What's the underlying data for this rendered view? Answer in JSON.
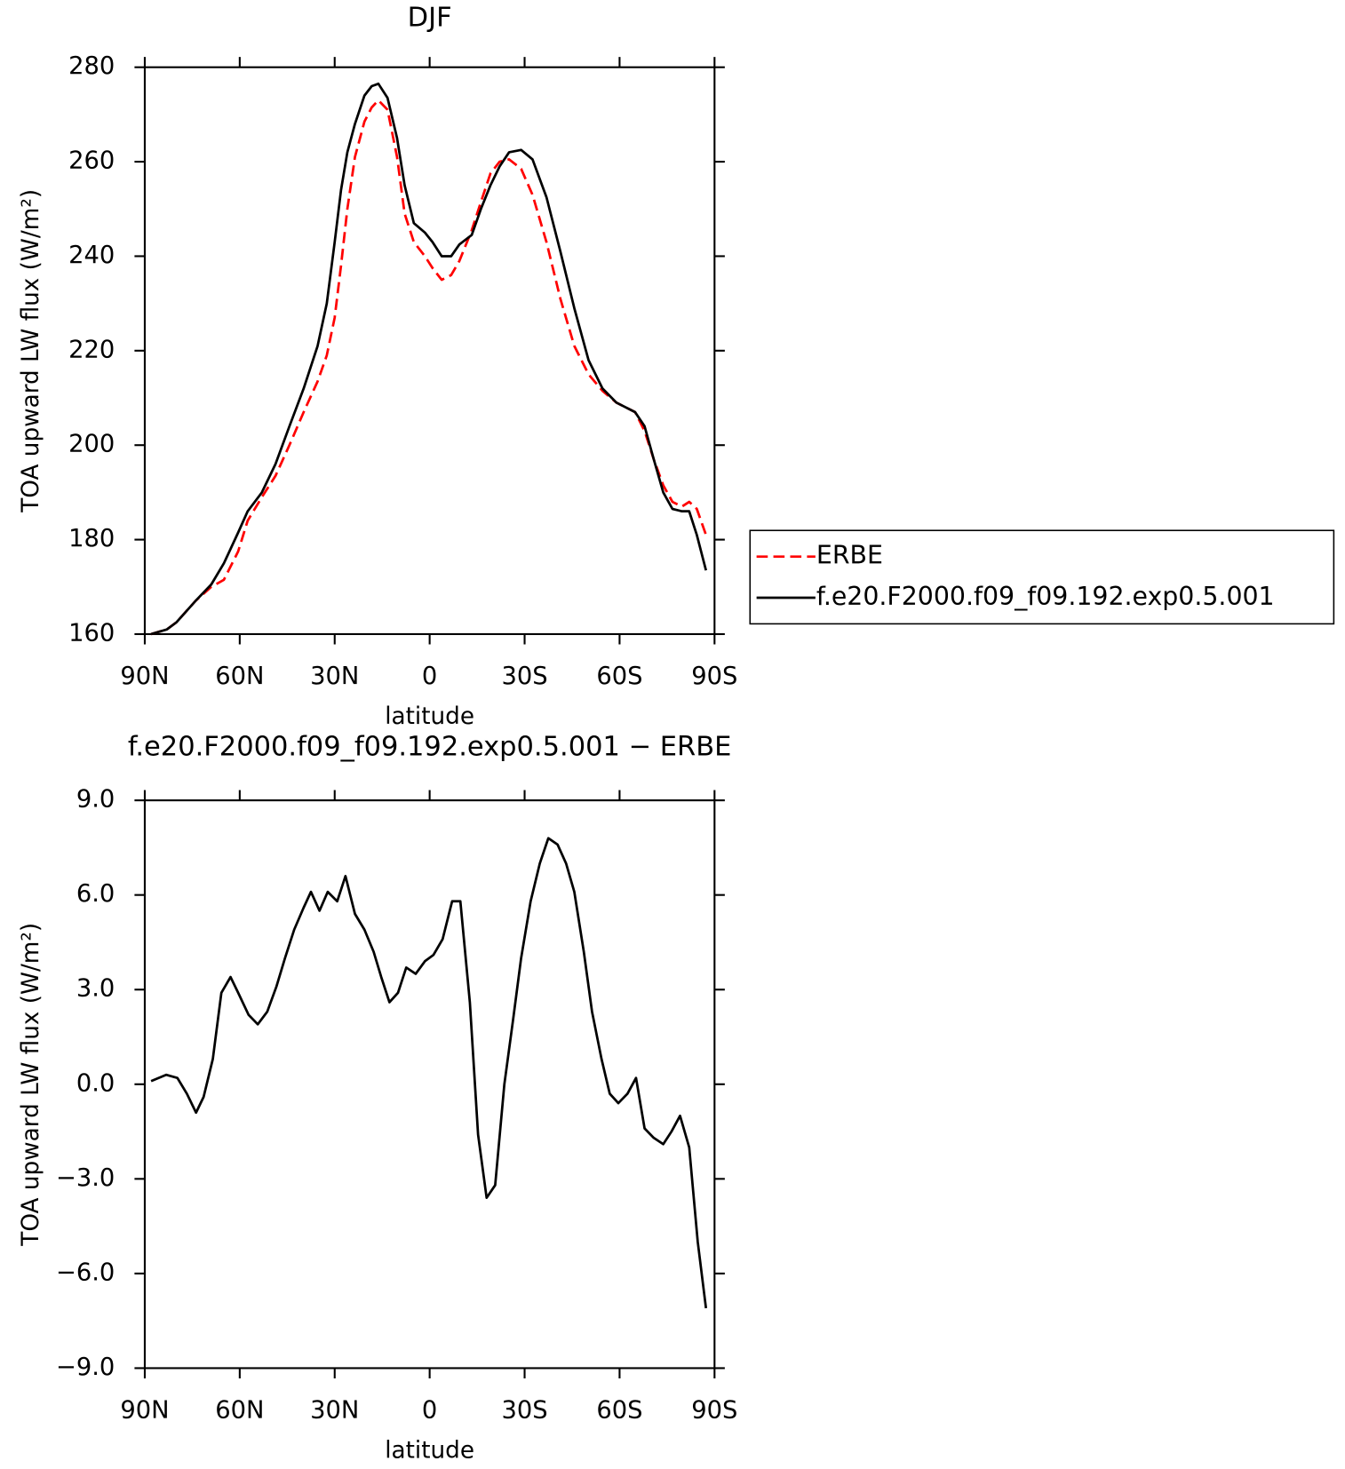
{
  "chart_data": [
    {
      "type": "line",
      "title": "DJF",
      "xlabel": "latitude",
      "ylabel": "TOA upward LW flux (W/m²)",
      "x": [
        88,
        83,
        80,
        74,
        69,
        65,
        60.5,
        57.5,
        53,
        48.7,
        44.3,
        39.8,
        35.4,
        32.5,
        30,
        28,
        26,
        23.6,
        20.6,
        18.3,
        16.2,
        13.3,
        10.3,
        7.9,
        5,
        1.5,
        -0.9,
        -3.8,
        -6.8,
        -9.4,
        -13.3,
        -16.2,
        -19.2,
        -22.1,
        -25.1,
        -28.9,
        -32.5,
        -36.9,
        -41.3,
        -45.7,
        -50.2,
        -54.6,
        -59,
        -64.9,
        -67.9,
        -70.8,
        -73.8,
        -76.7,
        -79.7,
        -82,
        -84.4,
        -87.3
      ],
      "series": [
        {
          "name": "ERBE",
          "color": "#ff0000",
          "style": "dashed",
          "values": [
            160,
            161,
            162.5,
            167,
            170,
            171.5,
            177.5,
            184,
            189,
            193.5,
            200,
            207,
            213.5,
            219,
            227,
            238,
            250,
            261,
            268.5,
            271.5,
            273,
            271,
            261,
            249,
            243,
            240,
            237.5,
            235,
            236,
            239,
            245.5,
            251.5,
            257.5,
            260,
            260.5,
            258.5,
            253,
            243,
            231,
            221,
            215,
            211.5,
            209,
            207,
            203,
            197,
            191.5,
            188,
            187,
            188,
            186.5,
            181
          ]
        },
        {
          "name": "f.e20.F2000.f09_f09.192.exp0.5.001",
          "color": "#000000",
          "style": "solid",
          "values": [
            160,
            161,
            162.5,
            167,
            170.5,
            175,
            181.5,
            186,
            190,
            196,
            204,
            212,
            221,
            230,
            243,
            254,
            262,
            268,
            274,
            276,
            276.5,
            273.5,
            265,
            255,
            247,
            245,
            243,
            240,
            240,
            242.5,
            244.5,
            250,
            255,
            259,
            262,
            262.5,
            260.5,
            252.5,
            241,
            229,
            218,
            212,
            209,
            207,
            204,
            197,
            190,
            186.5,
            186,
            186,
            181,
            173.5
          ]
        }
      ],
      "xlim": [
        90,
        -90
      ],
      "xticks": [
        {
          "value": 90,
          "label": "90N"
        },
        {
          "value": 60,
          "label": "60N"
        },
        {
          "value": 30,
          "label": "30N"
        },
        0,
        {
          "value": -30,
          "label": "30S"
        },
        {
          "value": -60,
          "label": "60S"
        },
        {
          "value": -90,
          "label": "90S"
        }
      ],
      "ylim": [
        160,
        280
      ],
      "yticks": [
        160,
        180,
        200,
        220,
        240,
        260,
        280
      ],
      "legend": "right"
    },
    {
      "type": "line",
      "title": "f.e20.F2000.f09_f09.192.exp0.5.001 − ERBE",
      "xlabel": "latitude",
      "ylabel": "TOA upward LW flux (W/m²)",
      "x": [
        88,
        83.2,
        79.7,
        76.7,
        73.8,
        71.4,
        68.5,
        65.8,
        62.9,
        60.5,
        57.2,
        54.3,
        51.3,
        48.4,
        45.7,
        42.8,
        39.8,
        37.5,
        34.8,
        32.2,
        29.2,
        26.6,
        23.6,
        20.6,
        17.7,
        15.3,
        12.7,
        10,
        7.4,
        4.4,
        1.5,
        -1.2,
        -4.1,
        -7.1,
        -9.7,
        -12.7,
        -15.3,
        -18,
        -20.7,
        -23.6,
        -26.3,
        -28.9,
        -31.9,
        -34.8,
        -37.5,
        -40.4,
        -43.1,
        -45.7,
        -48.7,
        -51.3,
        -54.3,
        -56.9,
        -59.6,
        -62.5,
        -65.2,
        -67.9,
        -70.8,
        -73.8,
        -76.4,
        -79.1,
        -82,
        -84.7,
        -87.3
      ],
      "values": [
        0.1,
        0.3,
        0.2,
        -0.3,
        -0.9,
        -0.4,
        0.8,
        2.9,
        3.4,
        2.9,
        2.2,
        1.9,
        2.3,
        3.1,
        4.0,
        4.9,
        5.6,
        6.1,
        5.5,
        6.1,
        5.8,
        6.6,
        5.4,
        4.9,
        4.2,
        3.4,
        2.6,
        2.9,
        3.7,
        3.5,
        3.9,
        4.1,
        4.6,
        5.8,
        5.8,
        2.6,
        -1.6,
        -3.6,
        -3.2,
        0.0,
        2.0,
        4.0,
        5.8,
        7.0,
        7.8,
        7.6,
        7.0,
        6.1,
        4.2,
        2.3,
        0.8,
        -0.3,
        -0.6,
        -0.3,
        0.2,
        -1.4,
        -1.7,
        -1.9,
        -1.5,
        -1.0,
        -2.0,
        -5.0,
        -7.1
      ],
      "color": "#000000",
      "xlim": [
        90,
        -90
      ],
      "xticks": [
        {
          "value": 90,
          "label": "90N"
        },
        {
          "value": 60,
          "label": "60N"
        },
        {
          "value": 30,
          "label": "30N"
        },
        0,
        {
          "value": -30,
          "label": "30S"
        },
        {
          "value": -60,
          "label": "60S"
        },
        {
          "value": -90,
          "label": "90S"
        }
      ],
      "ylim": [
        -9,
        9
      ],
      "yticks": [
        {
          "value": -9,
          "label": "−9.0"
        },
        {
          "value": -6,
          "label": "−6.0"
        },
        {
          "value": -3,
          "label": "−3.0"
        },
        {
          "value": 0,
          "label": "0.0"
        },
        {
          "value": 3,
          "label": "3.0"
        },
        {
          "value": 6,
          "label": "6.0"
        },
        {
          "value": 9,
          "label": "9.0"
        }
      ]
    }
  ]
}
